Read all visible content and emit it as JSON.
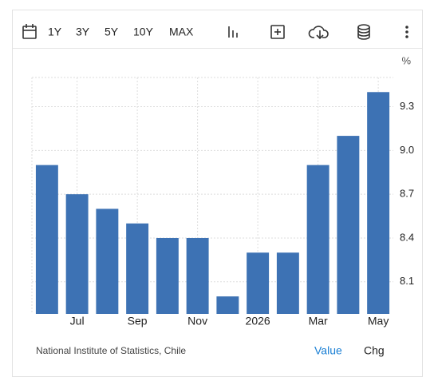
{
  "toolbar": {
    "ranges": [
      "1Y",
      "3Y",
      "5Y",
      "10Y",
      "MAX"
    ]
  },
  "chart_data": {
    "type": "bar",
    "unit": "%",
    "categories": [
      null,
      "Jul",
      null,
      "Sep",
      null,
      "Nov",
      null,
      "2026",
      null,
      "Mar",
      null,
      "May"
    ],
    "values": [
      8.9,
      8.7,
      8.6,
      8.5,
      8.4,
      8.4,
      8.0,
      8.3,
      8.3,
      8.9,
      9.1,
      9.4
    ],
    "color": "#3d72b4",
    "ylim": [
      7.88,
      9.5
    ],
    "yticks": [
      8.1,
      8.4,
      8.7,
      {
        "value": 9,
        "label": "9.0"
      },
      9.3
    ],
    "y_axis_side": "right",
    "grid": true
  },
  "footer": {
    "source": "National Institute of Statistics, Chile",
    "tabs": [
      "Value",
      "Chg"
    ]
  }
}
